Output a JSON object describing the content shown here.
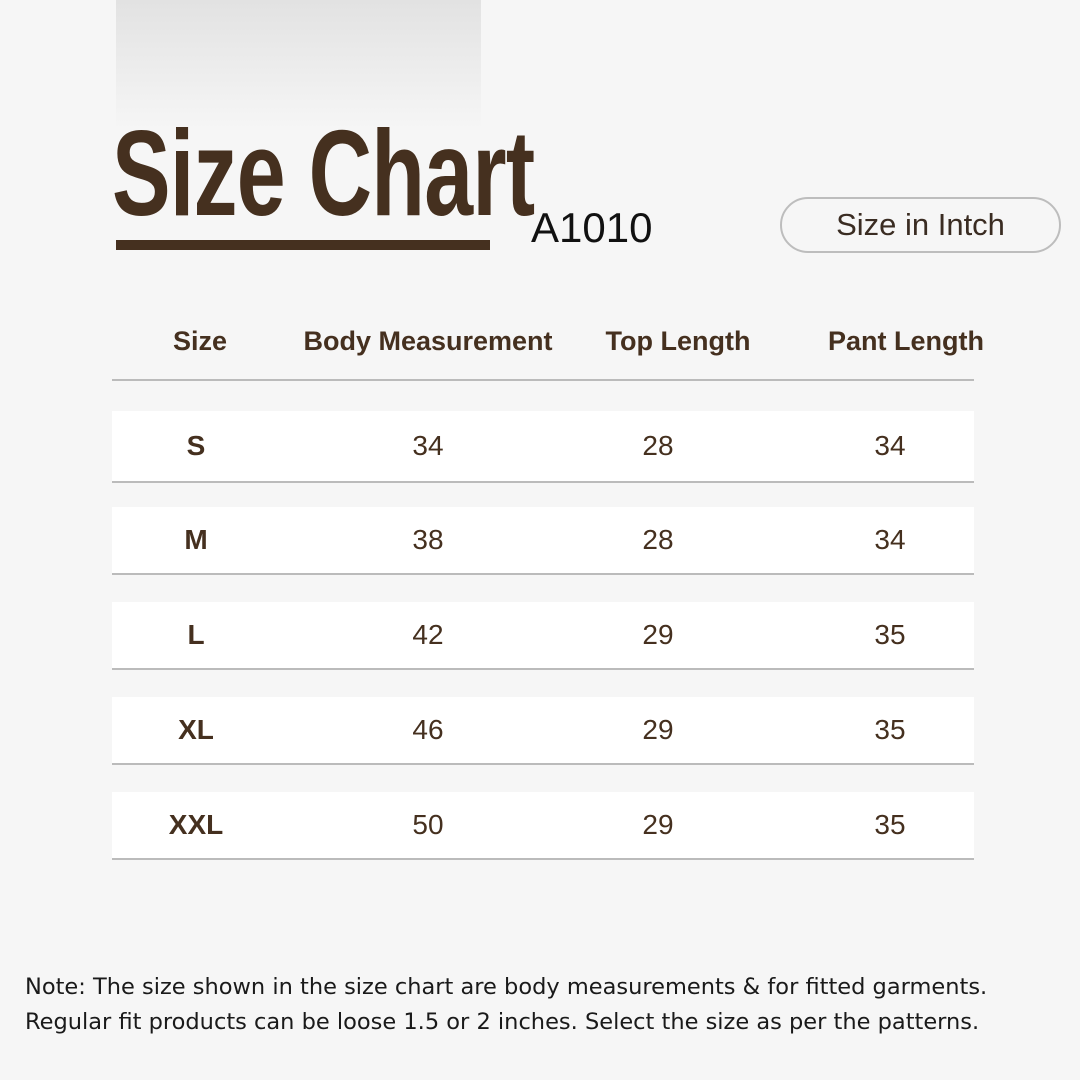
{
  "header": {
    "title": "Size Chart",
    "product_code": "A1010",
    "unit_label": "Size in Intch"
  },
  "table": {
    "columns": [
      "Size",
      "Body Measurement",
      "Top Length",
      "Pant Length"
    ],
    "rows": [
      [
        "S",
        "34",
        "28",
        "34"
      ],
      [
        "M",
        "38",
        "28",
        "34"
      ],
      [
        "L",
        "42",
        "29",
        "35"
      ],
      [
        "XL",
        "46",
        "29",
        "35"
      ],
      [
        "XXL",
        "50",
        "29",
        "35"
      ]
    ]
  },
  "note": {
    "line1": "Note: The size shown in the size chart are body measurements & for fitted garments.",
    "line2": "Regular fit products can be loose 1.5 or 2 inches. Select the size as per the patterns."
  },
  "colors": {
    "brand": "#45301f",
    "background": "#f6f6f6",
    "divider": "#bbbbbb"
  }
}
